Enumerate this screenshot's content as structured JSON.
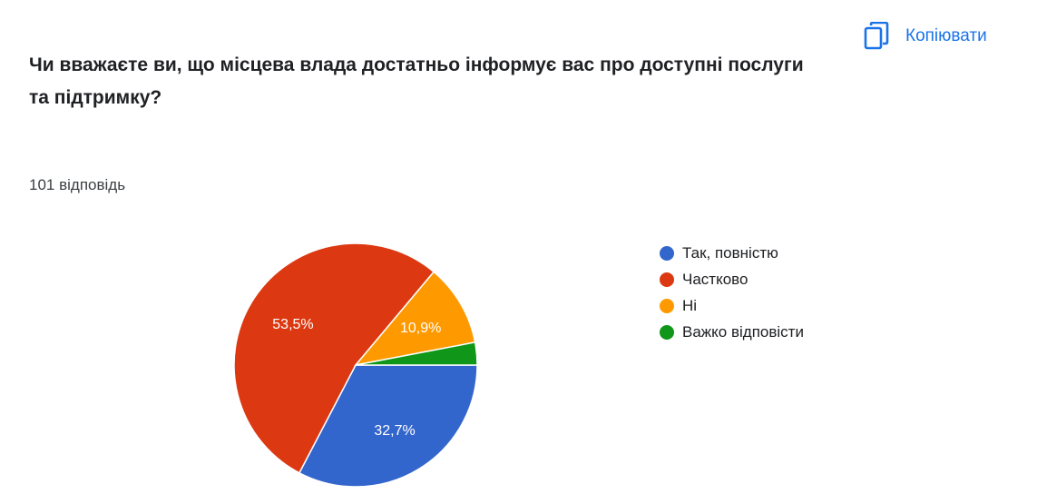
{
  "header": {
    "copy_label": "Копіювати"
  },
  "response_count": "101 відповідь",
  "chart_data": {
    "type": "pie",
    "title": "Чи вважаєте ви, що місцева влада достатньо інформує вас про доступні послуги та підтримку?",
    "slices": [
      {
        "label": "Так, повністю",
        "value": 32.7,
        "display": "32,7%",
        "color": "#3366cc"
      },
      {
        "label": "Частково",
        "value": 53.5,
        "display": "53,5%",
        "color": "#dc3912"
      },
      {
        "label": "Ні",
        "value": 10.9,
        "display": "10,9%",
        "color": "#ff9900"
      },
      {
        "label": "Важко відповісти",
        "value": 3.0,
        "display": "",
        "color": "#109618"
      }
    ],
    "legend_position": "right"
  }
}
